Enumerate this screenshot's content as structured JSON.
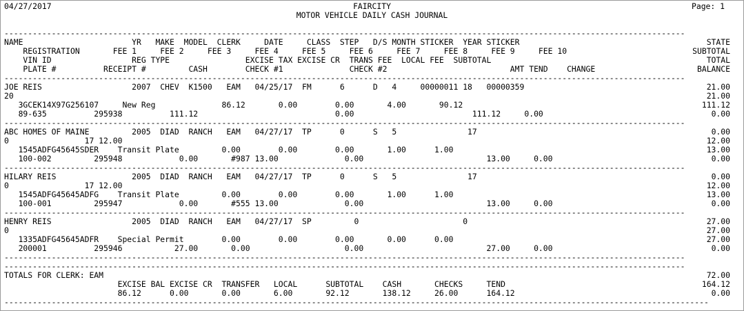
{
  "header": {
    "date": "04/27/2017",
    "page": "Page: 1",
    "org": "FAIRCITY",
    "title": "MOTOR VEHICLE DAILY CASH JOURNAL"
  },
  "rule": "------------------------------------------------------------------------------------------------------------------------------------------------",
  "col_header": [
    {
      "text": "NAME                       YR   MAKE  MODEL  CLERK     DATE     CLASS  STEP   D/S MONTH STICKER  YEAR STICKER",
      "right": "STATE"
    },
    {
      "text": "    REGISTRATION       FEE 1     FEE 2     FEE 3     FEE 4     FEE 5     FEE 6     FEE 7     FEE 8     FEE 9     FEE 10",
      "right": "SUBTOTAL"
    },
    {
      "text": "    VIN ID                 REG TYPE                EXCISE TAX EXCISE CR  TRANS FEE  LOCAL FEE  SUBTOTAL",
      "right": "TOTAL"
    },
    {
      "text": "    PLATE #          RECEIPT #         CASH        CHECK #1              CHECK #2                          AMT TEND    CHANGE",
      "right": "BALANCE"
    }
  ],
  "records": [
    {
      "lines": [
        {
          "text": "JOE REIS                   2007  CHEV  K1500   EAM   04/25/17  FM      6      D   4     00000011 18   00000359",
          "right": "21.00"
        },
        {
          "text": "20",
          "right": "21.00"
        },
        {
          "text": "   3GCEK14X97G256107     New Reg              86.12       0.00        0.00       4.00       90.12",
          "right": "111.12"
        },
        {
          "text": "   89-635          295938          111.12                             0.00                         111.12     0.00",
          "right": "0.00"
        }
      ]
    },
    {
      "lines": [
        {
          "text": "ABC HOMES OF MAINE         2005  DIAD  RANCH   EAM   04/27/17  TP      0      S   5               17",
          "right": "0.00"
        },
        {
          "text": "0                17 12.00",
          "right": "12.00"
        },
        {
          "text": "   1545ADFG45645SDER    Transit Plate         0.00        0.00        0.00       1.00      1.00",
          "right": "13.00"
        },
        {
          "text": "   100-002         295948            0.00       #987 13.00              0.00                          13.00     0.00",
          "right": "0.00"
        }
      ]
    },
    {
      "lines": [
        {
          "text": "HILARY REIS                2005  DIAD  RANCH   EAM   04/27/17  TP      0      S   5               17",
          "right": "0.00"
        },
        {
          "text": "0                17 12.00",
          "right": "12.00"
        },
        {
          "text": "   1545ADFG45645ADFG    Transit Plate         0.00        0.00        0.00       1.00      1.00",
          "right": "13.00"
        },
        {
          "text": "   100-001         295947            0.00       #555 13.00              0.00                          13.00     0.00",
          "right": "0.00"
        }
      ]
    },
    {
      "lines": [
        {
          "text": "HENRY REIS                 2005  DIAD  RANCH   EAM   04/27/17  SP         0                      0",
          "right": "27.00"
        },
        {
          "text": "0",
          "right": "27.00"
        },
        {
          "text": "   1335ADFG45645ADFR    Special Permit        0.00        0.00        0.00       0.00      0.00",
          "right": "27.00"
        },
        {
          "text": "   200001          295946           27.00       0.00                    0.00                          27.00     0.00",
          "right": "0.00"
        }
      ]
    }
  ],
  "totals": {
    "title": "TOTALS FOR CLERK: EAM",
    "title_right": "72.00",
    "labels": "                        EXCISE BAL EXCISE CR  TRANSFER   LOCAL      SUBTOTAL    CASH       CHECKS     TEND",
    "labels_right": "164.12",
    "values": "                        86.12      0.00       0.00       6.00       92.12       138.12     26.00      164.12",
    "values_right": "0.00"
  },
  "end_marker": "-----------------------------------------------------------------------------------------------------------------------------------------------------"
}
